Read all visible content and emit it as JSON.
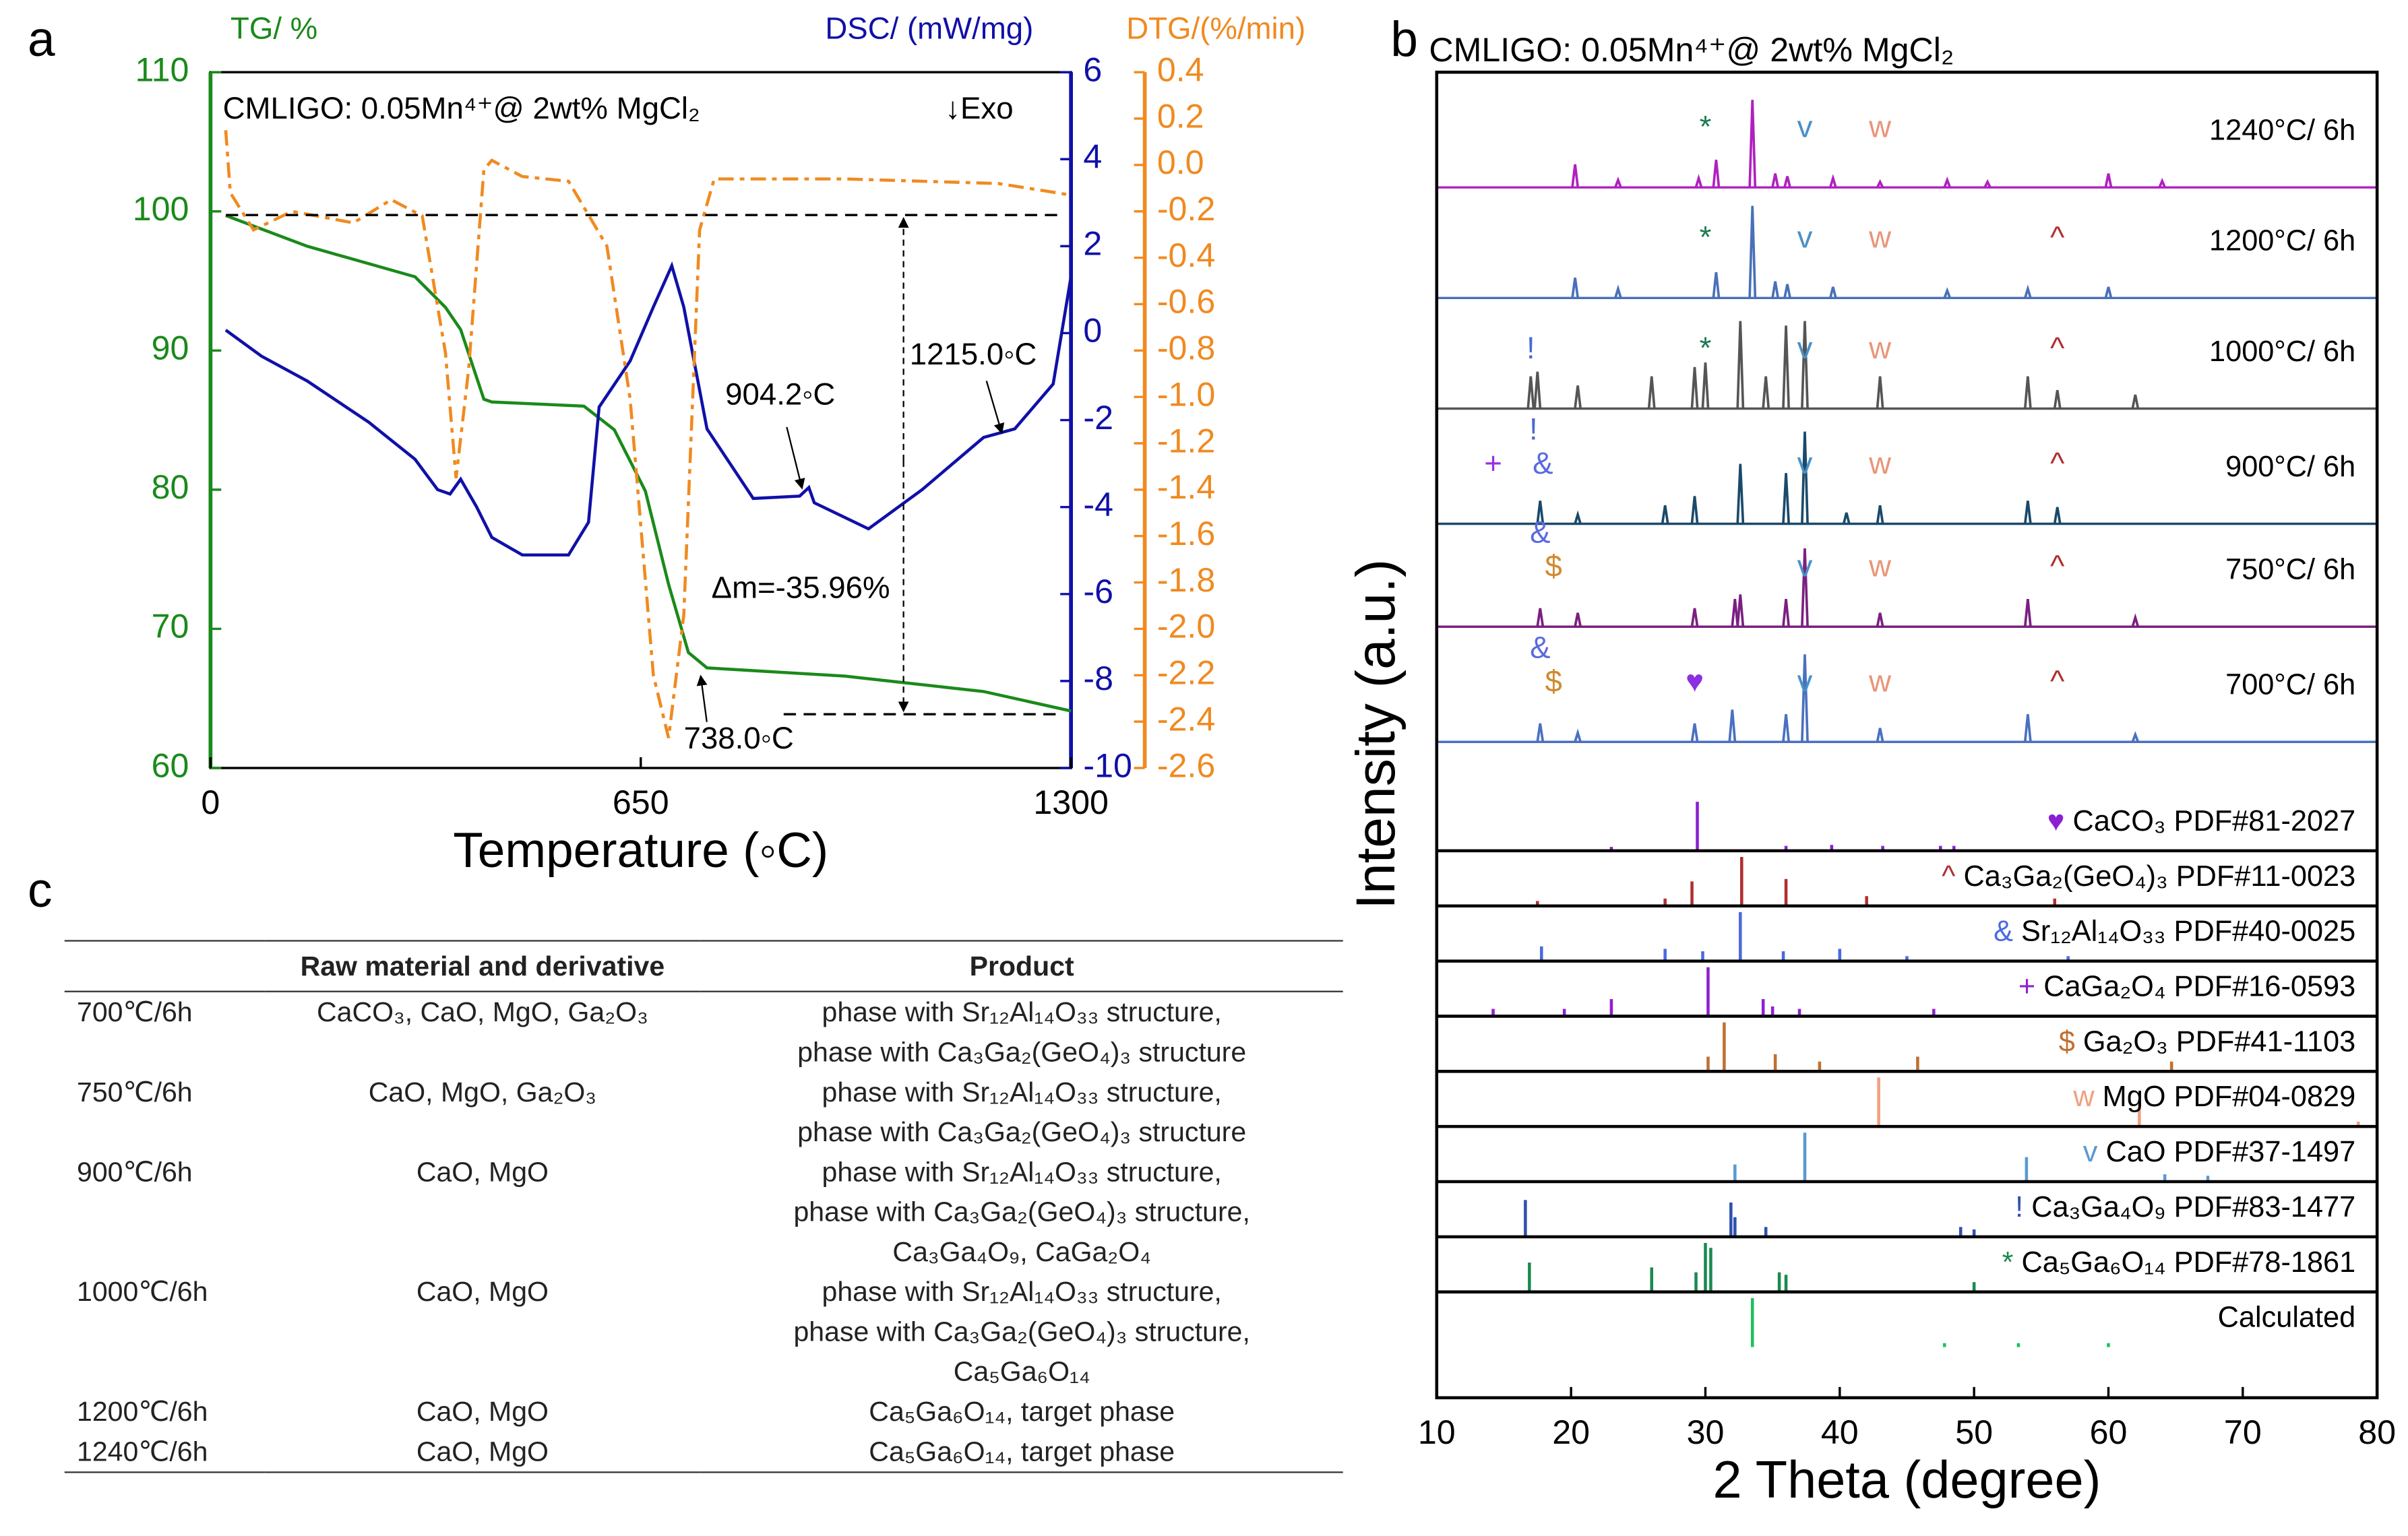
{
  "panel_labels": [
    "a",
    "b",
    "c"
  ],
  "chart_data": [
    {
      "type": "line",
      "xlabel": "Temperature (◦C)",
      "ylabel": "TG/ %",
      "y2label": "DSC/ (mW/mg)",
      "y3label": "DTG/(%/min)",
      "annotations": [
        "CMLIGO: 0.05Mn⁴⁺@ 2wt% MgCl₂",
        "↓Exo",
        "904.2◦C",
        "1215.0◦C",
        "Δm=-35.96%",
        "738.0◦C"
      ],
      "xlim": [
        0,
        1300
      ],
      "xticks": [
        0,
        650,
        1300
      ],
      "ylim": [
        60,
        110
      ],
      "yticks": [
        60,
        70,
        80,
        90,
        100,
        110
      ],
      "y2lim": [
        -10,
        6
      ],
      "y2ticks": [
        -10,
        -8,
        -6,
        -4,
        -2,
        0,
        2,
        4,
        6
      ],
      "y3lim": [
        -2.6,
        0.4
      ],
      "y3ticks": [
        -2.6,
        -2.4,
        -2.2,
        {
          "value": -2,
          "label": "-2.0"
        },
        -1.8,
        -1.6,
        -1.4,
        -1.2,
        {
          "value": -1,
          "label": "-1.0"
        },
        -0.8,
        -0.6,
        -0.4,
        -0.2,
        {
          "value": 0,
          "label": "0.0"
        },
        0.2,
        0.4
      ],
      "series": [
        {
          "axis": "y",
          "color": "#1a8a1a",
          "x": [
            23,
            146,
            309,
            355,
            378,
            413,
            425,
            564,
            610,
            657,
            692,
            722,
            750,
            959,
            1168,
            1300
          ],
          "values": [
            99.7,
            97.5,
            95.3,
            93.1,
            91.5,
            86.5,
            86.3,
            86,
            84.3,
            79.9,
            73.2,
            68.3,
            67.2,
            66.6,
            65.5,
            64.1
          ]
        },
        {
          "axis": "y2",
          "color": "#1010a8",
          "x": [
            23,
            77,
            146,
            239,
            309,
            343,
            362,
            378,
            402,
            425,
            471,
            541,
            571,
            587,
            634,
            669,
            697,
            715,
            750,
            820,
            890,
            904,
            912,
            994,
            1075,
            1168,
            1215,
            1273,
            1300
          ],
          "values": [
            0.07,
            -0.53,
            -1.1,
            -2.05,
            -2.9,
            -3.6,
            -3.7,
            -3.36,
            -4.0,
            -4.7,
            -5.1,
            -5.1,
            -4.35,
            -1.7,
            -0.64,
            0.6,
            1.55,
            0.6,
            -2.2,
            -3.8,
            -3.75,
            -3.55,
            -3.9,
            -4.5,
            -3.6,
            -2.4,
            -2.2,
            -1.17,
            1.3
          ]
        },
        {
          "axis": "y3",
          "color": "#f08a20",
          "dash": true,
          "x": [
            23,
            30,
            65,
            123,
            216,
            273,
            320,
            355,
            371,
            390,
            413,
            425,
            471,
            541,
            599,
            634,
            669,
            692,
            715,
            739,
            761,
            959,
            1191,
            1300
          ],
          "values": [
            0.15,
            -0.12,
            -0.28,
            -0.2,
            -0.25,
            -0.15,
            -0.22,
            -0.81,
            -1.35,
            -0.88,
            -0.02,
            0.02,
            -0.05,
            -0.07,
            -0.35,
            -1.01,
            -2.2,
            -2.47,
            -1.94,
            -0.28,
            -0.06,
            -0.06,
            -0.08,
            -0.13
          ]
        }
      ]
    },
    {
      "type": "xrd",
      "title": "CMLIGO: 0.05Mn⁴⁺@ 2wt% MgCl₂",
      "xlabel": "2 Theta (degree)",
      "ylabel": "Intensity (a.u.)",
      "xlim": [
        10,
        80
      ],
      "xticks": [
        10,
        20,
        30,
        40,
        50,
        60,
        70,
        80
      ],
      "patterns": [
        {
          "label": "1240°C/ 6h",
          "color": "#b020c0",
          "peaks": {
            "x": [
              20.3,
              23.5,
              29.5,
              30.8,
              33.5,
              35.2,
              36.1,
              39.5,
              43,
              48,
              51,
              60,
              64
            ],
            "values": [
              25,
              8,
              10,
              30,
              95,
              15,
              12,
              10,
              6,
              8,
              6,
              15,
              7
            ]
          },
          "markers": [
            {
              "label": "*",
              "color": "#1a7a50",
              "x": 30
            },
            {
              "label": "v",
              "color": "#4a90c8",
              "x": 37.4
            },
            {
              "label": "w",
              "color": "#e8967a",
              "x": 43
            }
          ]
        },
        {
          "label": "1200°C/ 6h",
          "color": "#4a70b8",
          "peaks": {
            "x": [
              20.3,
              23.5,
              30.8,
              33.5,
              35.2,
              36.1,
              39.5,
              48,
              54,
              60
            ],
            "values": [
              22,
              10,
              28,
              100,
              18,
              15,
              12,
              8,
              10,
              12
            ]
          },
          "markers": [
            {
              "label": "*",
              "color": "#1a7a50",
              "x": 30
            },
            {
              "label": "v",
              "color": "#4a90c8",
              "x": 37.4
            },
            {
              "label": "w",
              "color": "#e8967a",
              "x": 43
            },
            {
              "label": "^",
              "color": "#b03030",
              "x": 56.2
            }
          ]
        },
        {
          "label": "1000°C/ 6h",
          "color": "#555555",
          "peaks": {
            "x": [
              17,
              17.5,
              20.5,
              26,
              29.2,
              30,
              32.6,
              34.5,
              36,
              37.4,
              43,
              54,
              56.2,
              62
            ],
            "values": [
              35,
              40,
              25,
              35,
              45,
              50,
              95,
              35,
              90,
              95,
              35,
              35,
              20,
              15
            ]
          },
          "markers": [
            {
              "label": "!",
              "color": "#4a6ad0",
              "x": 17
            },
            {
              "label": "*",
              "color": "#1a7a50",
              "x": 30
            },
            {
              "label": "v",
              "color": "#4a90c8",
              "x": 37.4
            },
            {
              "label": "w",
              "color": "#e8967a",
              "x": 43
            },
            {
              "label": "^",
              "color": "#b03030",
              "x": 56.2
            }
          ]
        },
        {
          "label": "900°C/ 6h",
          "color": "#1a4a6a",
          "peaks": {
            "x": [
              17.7,
              20.5,
              27,
              29.2,
              32.6,
              36,
              37.4,
              40.5,
              43,
              54,
              56.2
            ],
            "values": [
              25,
              10,
              20,
              30,
              65,
              55,
              100,
              12,
              20,
              25,
              18
            ]
          },
          "markers": [
            {
              "label": "+",
              "color": "#9a30e0",
              "x": 14.2
            },
            {
              "label": "!",
              "color": "#4a6ad0",
              "x": 17.2
            },
            {
              "label": "&",
              "color": "#5a6ae0",
              "x": 17.9
            },
            {
              "label": "v",
              "color": "#4a90c8",
              "x": 37.4
            },
            {
              "label": "w",
              "color": "#e8967a",
              "x": 43
            },
            {
              "label": "^",
              "color": "#b03030",
              "x": 56.2
            }
          ]
        },
        {
          "label": "750°C/ 6h",
          "color": "#7a2080",
          "peaks": {
            "x": [
              17.7,
              20.5,
              29.2,
              32.2,
              32.6,
              36,
              37.4,
              43,
              54,
              62
            ],
            "values": [
              20,
              15,
              20,
              30,
              35,
              30,
              85,
              15,
              30,
              10
            ]
          },
          "markers": [
            {
              "label": "&",
              "color": "#5a6ae0",
              "x": 17.7
            },
            {
              "label": "$",
              "color": "#d08a30",
              "x": 18.7
            },
            {
              "label": "v",
              "color": "#4a90c8",
              "x": 37.4
            },
            {
              "label": "w",
              "color": "#e8967a",
              "x": 43
            },
            {
              "label": "^",
              "color": "#b03030",
              "x": 56.2
            }
          ]
        },
        {
          "label": "700°C/ 6h",
          "color": "#4a70c0",
          "peaks": {
            "x": [
              17.7,
              20.5,
              29.2,
              32,
              36,
              37.4,
              43,
              54,
              62
            ],
            "values": [
              20,
              10,
              20,
              35,
              30,
              95,
              15,
              30,
              8
            ]
          },
          "markers": [
            {
              "label": "&",
              "color": "#5a6ae0",
              "x": 17.7
            },
            {
              "label": "$",
              "color": "#d08a30",
              "x": 18.7
            },
            {
              "label": "♥",
              "color": "#8a30e0",
              "x": 29.2
            },
            {
              "label": "v",
              "color": "#4a90c8",
              "x": 37.4
            },
            {
              "label": "w",
              "color": "#e8967a",
              "x": 43
            },
            {
              "label": "^",
              "color": "#b03030",
              "x": 56.2
            }
          ]
        }
      ],
      "references": [
        {
          "symbol": "♥",
          "label": "CaCO₃ PDF#81-2027",
          "color": "#8a20d0",
          "x": [
            23,
            29.4,
            36,
            39.4,
            43.2,
            47.5,
            48.5
          ],
          "values": [
            8,
            100,
            10,
            12,
            10,
            10,
            10
          ]
        },
        {
          "symbol": "^",
          "label": "Ca₃Ga₂(GeO₄)₃ PDF#11-0023",
          "color": "#b03030",
          "x": [
            17.5,
            27,
            29,
            32.7,
            36,
            42,
            56
          ],
          "values": [
            10,
            15,
            50,
            100,
            55,
            20,
            15
          ]
        },
        {
          "symbol": "&",
          "label": "Sr₁₂Al₁₄O₃₃ PDF#40-0025",
          "color": "#4a6ae0",
          "x": [
            17.8,
            27,
            29.8,
            32.6,
            35.8,
            40,
            45,
            57
          ],
          "values": [
            30,
            25,
            20,
            100,
            20,
            25,
            10,
            10
          ]
        },
        {
          "symbol": "+",
          "label": "CaGa₂O₄ PDF#16-0593",
          "color": "#9020d0",
          "x": [
            14.2,
            19.5,
            23,
            30.2,
            34.3,
            35,
            37,
            47
          ],
          "values": [
            15,
            15,
            35,
            100,
            35,
            20,
            15,
            15
          ]
        },
        {
          "symbol": "$",
          "label": "Ga₂O₃ PDF#41-1103",
          "color": "#c07030",
          "x": [
            30.2,
            31.4,
            35.2,
            38.5,
            45.8,
            64.7
          ],
          "values": [
            30,
            100,
            35,
            20,
            30,
            20
          ]
        },
        {
          "symbol": "w",
          "label": "MgO PDF#04-0829",
          "color": "#f0a080",
          "x": [
            42.9,
            62.3,
            78.6
          ],
          "values": [
            100,
            55,
            10
          ]
        },
        {
          "symbol": "v",
          "label": "CaO PDF#37-1497",
          "color": "#5a9ad0",
          "x": [
            32.2,
            37.4,
            53.9,
            64.2,
            67.4
          ],
          "values": [
            35,
            100,
            50,
            15,
            12
          ]
        },
        {
          "symbol": "!",
          "label": "Ca₃Ga₄O₉ PDF#83-1477",
          "color": "#3050b0",
          "x": [
            16.6,
            31.9,
            32.2,
            34.5,
            49,
            50
          ],
          "values": [
            75,
            70,
            40,
            20,
            20,
            15
          ]
        },
        {
          "symbol": "*",
          "label": "Ca₅Ga₆O₁₄ PDF#78-1861",
          "color": "#1a8a50",
          "x": [
            16.9,
            26,
            29.3,
            30,
            30.4,
            35.5,
            36,
            50
          ],
          "values": [
            60,
            50,
            40,
            100,
            90,
            40,
            35,
            20
          ]
        },
        {
          "label": "Calculated",
          "color": "#20c060",
          "x": [
            33.5,
            47.8,
            53.3,
            60
          ],
          "values": [
            100,
            8,
            8,
            8
          ]
        }
      ]
    }
  ],
  "table": {
    "header": [
      "",
      "Raw material and derivative",
      "Product"
    ],
    "rows": [
      [
        "700℃/6h",
        "CaCO₃, CaO, MgO, Ga₂O₃",
        [
          "phase with Sr₁₂Al₁₄O₃₃ structure,",
          "phase with Ca₃Ga₂(GeO₄)₃ structure"
        ]
      ],
      [
        "750℃/6h",
        "CaO, MgO, Ga₂O₃",
        [
          "phase with Sr₁₂Al₁₄O₃₃ structure,",
          "phase with Ca₃Ga₂(GeO₄)₃ structure"
        ]
      ],
      [
        "900℃/6h",
        "CaO, MgO",
        [
          "phase with Sr₁₂Al₁₄O₃₃ structure,",
          "phase with Ca₃Ga₂(GeO₄)₃ structure,",
          "Ca₃Ga₄O₉, CaGa₂O₄"
        ]
      ],
      [
        "1000℃/6h",
        "CaO, MgO",
        [
          "phase with Sr₁₂Al₁₄O₃₃ structure,",
          "phase with Ca₃Ga₂(GeO₄)₃ structure,",
          "Ca₅Ga₆O₁₄"
        ]
      ],
      [
        "1200℃/6h",
        "CaO, MgO",
        [
          "Ca₅Ga₆O₁₄, target phase"
        ]
      ],
      [
        "1240℃/6h",
        "CaO, MgO",
        [
          "Ca₅Ga₆O₁₄, target phase"
        ]
      ]
    ]
  }
}
